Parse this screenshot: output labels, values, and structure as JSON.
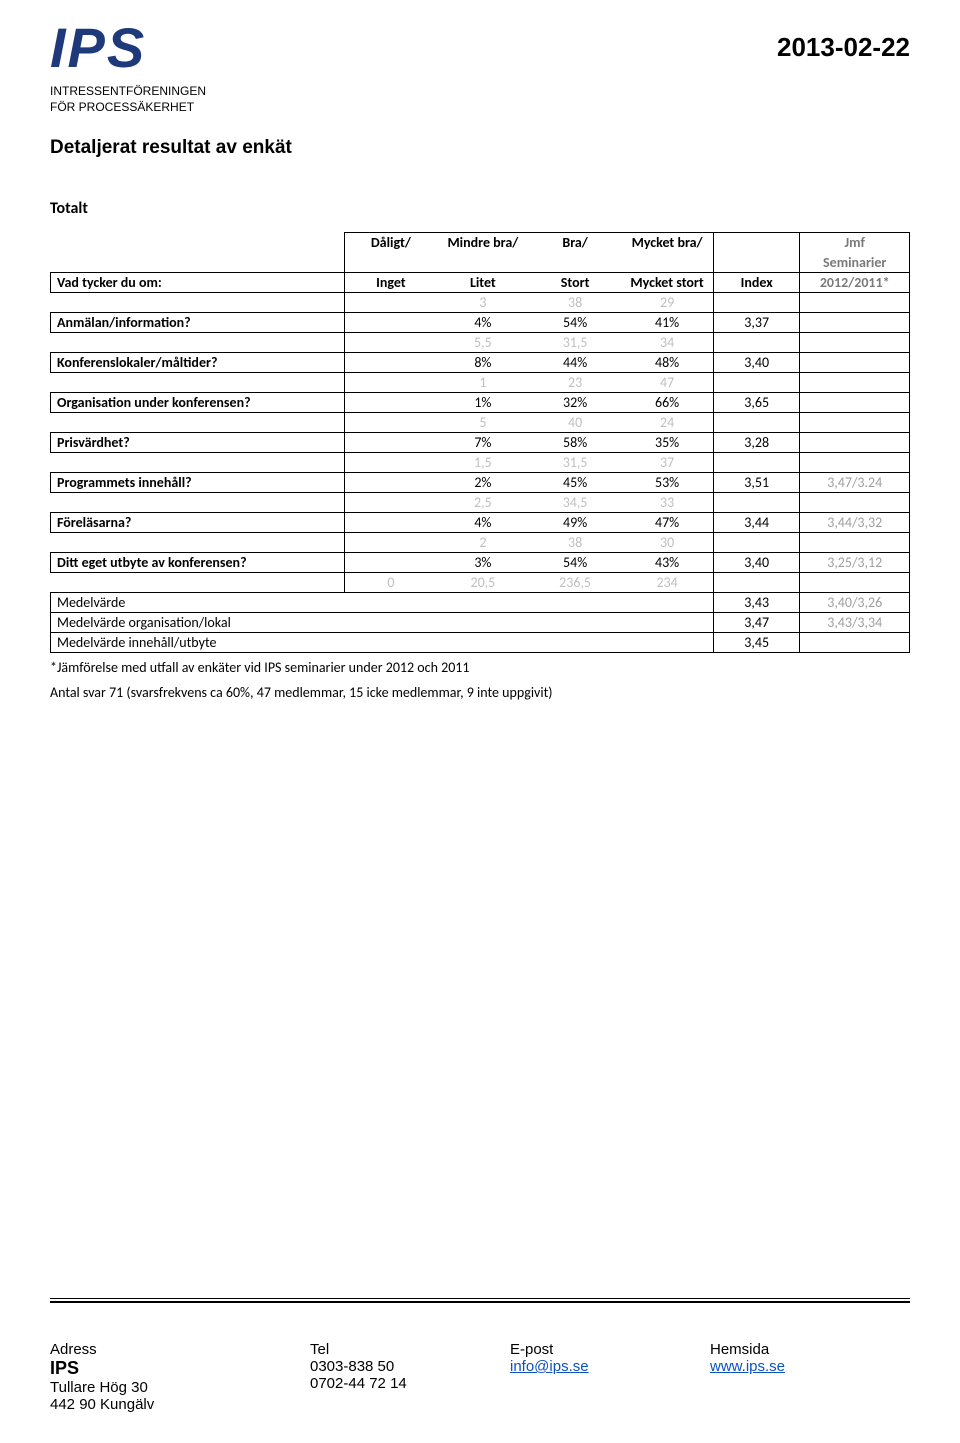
{
  "header": {
    "logo_text": "IPS",
    "logo_sub_line1": "INTRESSENTFÖRENINGEN",
    "logo_sub_line2": "FÖR PROCESSÄKERHET",
    "date": "2013-02-22"
  },
  "title": "Detaljerat resultat av enkät",
  "section_heading": "Totalt",
  "table_headers": {
    "col1_a": "Dåligt/",
    "col1_b": "Inget",
    "col2_a": "Mindre bra/",
    "col2_b": "Litet",
    "col3_a": "Bra/",
    "col3_b": "Stort",
    "col4_a": "Mycket bra/",
    "col4_b": "Mycket stort",
    "index": "Index",
    "jmf_a": "Jmf",
    "jmf_b": "Seminarier",
    "jmf_c": "2012/2011*",
    "row_label": "Vad tycker du om:"
  },
  "rows": [
    {
      "faint": [
        "",
        "3",
        "38",
        "29"
      ],
      "label": "Anmälan/information?",
      "vals": [
        "",
        "4%",
        "54%",
        "41%"
      ],
      "index": "3,37",
      "jmf": ""
    },
    {
      "faint": [
        "",
        "5,5",
        "31,5",
        "34"
      ],
      "label": "Konferenslokaler/måltider?",
      "vals": [
        "",
        "8%",
        "44%",
        "48%"
      ],
      "index": "3,40",
      "jmf": ""
    },
    {
      "faint": [
        "",
        "1",
        "23",
        "47"
      ],
      "label": "Organisation under konferensen?",
      "vals": [
        "",
        "1%",
        "32%",
        "66%"
      ],
      "index": "3,65",
      "jmf": ""
    },
    {
      "faint": [
        "",
        "5",
        "40",
        "24"
      ],
      "label": "Prisvärdhet?",
      "vals": [
        "",
        "7%",
        "58%",
        "35%"
      ],
      "index": "3,28",
      "jmf": ""
    },
    {
      "faint": [
        "",
        "1,5",
        "31,5",
        "37"
      ],
      "label": "Programmets innehåll?",
      "vals": [
        "",
        "2%",
        "45%",
        "53%"
      ],
      "index": "3,51",
      "jmf": "3,47/3.24"
    },
    {
      "faint": [
        "",
        "2,5",
        "34,5",
        "33"
      ],
      "label": "Föreläsarna?",
      "vals": [
        "",
        "4%",
        "49%",
        "47%"
      ],
      "index": "3,44",
      "jmf": "3,44/3,32"
    },
    {
      "faint": [
        "",
        "2",
        "38",
        "30"
      ],
      "label": "Ditt eget utbyte av konferensen?",
      "vals": [
        "",
        "3%",
        "54%",
        "43%"
      ],
      "index": "3,40",
      "jmf": "3,25/3,12"
    }
  ],
  "totals_faint": [
    "0",
    "20,5",
    "236,5",
    "234"
  ],
  "summary": [
    {
      "label": "Medelvärde",
      "index": "3,43",
      "jmf": "3,40/3,26"
    },
    {
      "label": "Medelvärde organisation/lokal",
      "index": "3,47",
      "jmf": "3,43/3,34"
    },
    {
      "label": "Medelvärde innehåll/utbyte",
      "index": "3,45",
      "jmf": ""
    }
  ],
  "footnotes": {
    "line1": "*Jämförelse med utfall av enkäter vid IPS seminarier under 2012 och 2011",
    "line2": "Antal svar 71  (svarsfrekvens ca 60%, 47 medlemmar, 15 icke medlemmar, 9 inte uppgivit)"
  },
  "footer": {
    "c1h": "Adress",
    "c1a": "IPS",
    "c1b": "Tullare Hög 30",
    "c1c": "442 90 Kungälv",
    "c2h": "Tel",
    "c2a": "0303-838 50",
    "c2b": "0702-44 72 14",
    "c3h": "E-post",
    "c3a": "info@ips.se",
    "c4h": "Hemsida",
    "c4a": "www.ips.se"
  },
  "colors": {
    "logo": "#1f3a7a",
    "faint": "#c0c0c0",
    "jmf": "#9e9e9e",
    "link": "#0b52c0"
  }
}
